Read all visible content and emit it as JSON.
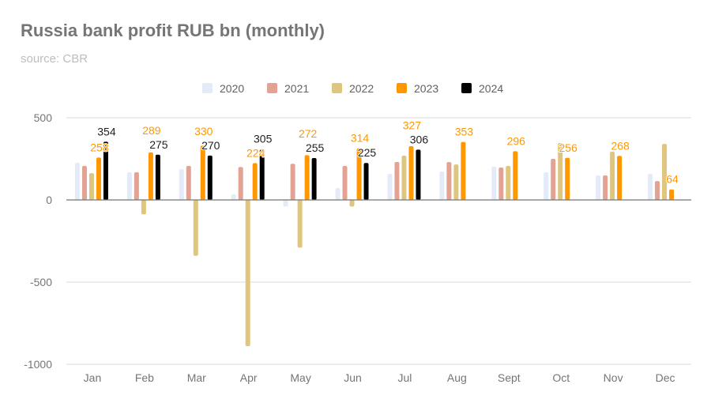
{
  "chart_data": {
    "type": "bar",
    "title": "Russia bank profit RUB bn (monthly)",
    "subtitle": "source: CBR",
    "xlabel": "",
    "ylabel": "",
    "ylim": [
      -1000,
      500
    ],
    "yticks": [
      500,
      0,
      -500,
      -1000
    ],
    "ytick_labels": [
      "500",
      "0",
      "-500",
      "-1000"
    ],
    "grid": true,
    "legend_position": "top",
    "categories": [
      "Jan",
      "Feb",
      "Mar",
      "Apr",
      "May",
      "Jun",
      "Jul",
      "Aug",
      "Sept",
      "Oct",
      "Nov",
      "Dec"
    ],
    "series": [
      {
        "name": "2020",
        "color": "#e3ebf8",
        "labels": false,
        "values": [
          226,
          168,
          187,
          34,
          -40,
          72,
          158,
          173,
          202,
          168,
          149,
          158
        ]
      },
      {
        "name": "2021",
        "color": "#e3a394",
        "labels": false,
        "values": [
          207,
          168,
          207,
          200,
          220,
          207,
          231,
          230,
          197,
          250,
          149,
          115
        ]
      },
      {
        "name": "2022",
        "color": "#dfc67e",
        "labels": false,
        "values": [
          163,
          -88,
          -340,
          -890,
          -290,
          -40,
          269,
          216,
          207,
          346,
          293,
          341
        ]
      },
      {
        "name": "2023",
        "color": "#ff9800",
        "labels": true,
        "values": [
          258,
          289,
          330,
          224,
          272,
          314,
          327,
          353,
          296,
          256,
          268,
          64
        ]
      },
      {
        "name": "2024",
        "color": "#000000",
        "labels": true,
        "values": [
          354,
          275,
          270,
          305,
          255,
          225,
          306,
          null,
          null,
          null,
          null,
          null
        ]
      }
    ]
  }
}
